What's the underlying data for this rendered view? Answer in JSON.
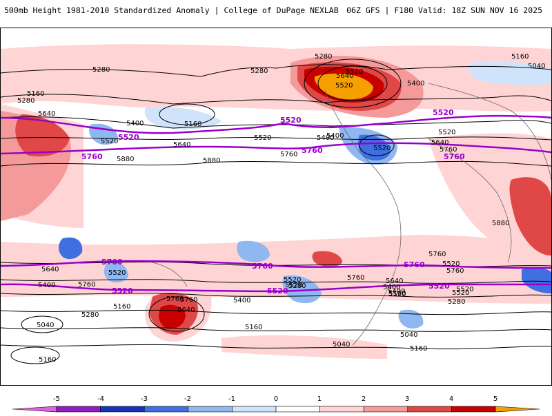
{
  "header": {
    "title": "500mb Height 1981-2010 Standardized Anomaly | College of DuPage NEXLAB",
    "valid": "06Z GFS | F180 Valid: 18Z SUN NOV 16 2025"
  },
  "contour_labels": [
    "5280",
    "5280",
    "5040",
    "5160",
    "5280",
    "5160",
    "5520",
    "5640",
    "5520",
    "5400",
    "5640",
    "5400",
    "5520",
    "5520",
    "5760",
    "5880",
    "5880",
    "5280",
    "5400",
    "5160",
    "5760",
    "5520",
    "5640",
    "5520",
    "5400",
    "5640",
    "5760",
    "5640",
    "5520",
    "5760",
    "5760",
    "5520",
    "5640",
    "5520",
    "5400",
    "5520",
    "5280",
    "5400",
    "5520",
    "5760",
    "5040",
    "5160",
    "5160",
    "5280",
    "5040",
    "5160",
    "5400",
    "5160",
    "5880",
    "5280",
    "5160",
    "5040",
    "5400",
    "5520",
    "5640",
    "5760",
    "5760",
    "5520"
  ],
  "highlight_labels": [
    "5520",
    "5760",
    "5520",
    "5760",
    "5520",
    "5760",
    "5520",
    "5760",
    "5520",
    "5760",
    "5520",
    "5760"
  ],
  "colors": {
    "highlight_contour": "#9900cc",
    "anomaly_positive_1": "#ffd4d4",
    "anomaly_positive_2": "#f59a9a",
    "anomaly_positive_3": "#e04848",
    "anomaly_positive_4": "#c80000",
    "anomaly_positive_5": "#f5a000",
    "anomaly_negative_1": "#cfe4fb",
    "anomaly_negative_2": "#8fb7f0",
    "anomaly_negative_3": "#3f6fe0",
    "anomaly_negative_4": "#1833b8"
  },
  "colorbar": {
    "ticks": [
      "-5",
      "-4",
      "-3",
      "-2",
      "-1",
      "0",
      "1",
      "2",
      "3",
      "4",
      "5"
    ],
    "colors": [
      "#e060e0",
      "#8f20c0",
      "#1833b8",
      "#3f6fe0",
      "#8fb7f0",
      "#cfe4fb",
      "#ffffff",
      "#ffd4d4",
      "#f59a9a",
      "#e04848",
      "#c80000",
      "#f5a000"
    ]
  }
}
